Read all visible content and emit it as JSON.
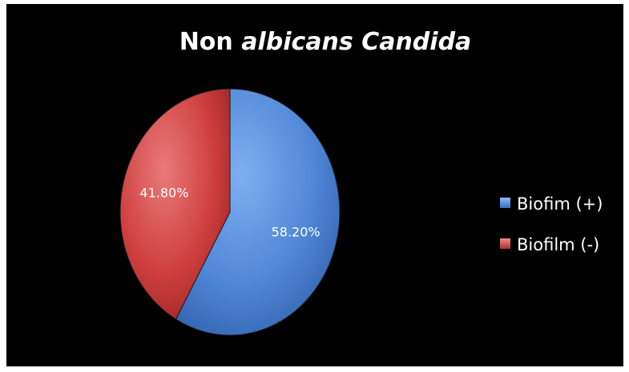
{
  "chart_data": {
    "type": "pie",
    "title": {
      "plain": "Non ",
      "italic": "albicans Candida"
    },
    "categories": [
      "Biofim (+)",
      "Biofilm (-)"
    ],
    "values": [
      58.2,
      41.8
    ],
    "data_labels": [
      "58.20%",
      "41.80%"
    ],
    "colors": [
      "#4f86d6",
      "#cf3f3f"
    ],
    "legend_position": "right"
  }
}
